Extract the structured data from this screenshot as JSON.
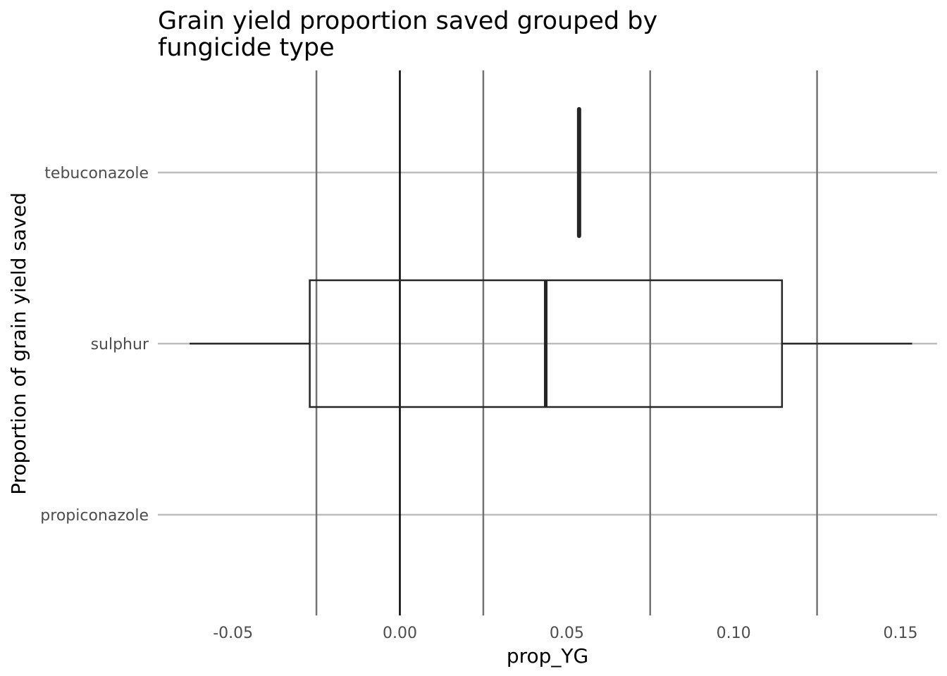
{
  "chart_data": {
    "type": "boxplot",
    "orientation": "horizontal",
    "title_lines": [
      "Grain yield proportion saved grouped by",
      "fungicide type"
    ],
    "xlabel": "prop_YG",
    "ylabel": "Proportion of grain yield saved",
    "xlim": [
      -0.075,
      0.165
    ],
    "x_ticks": [
      -0.05,
      0.0,
      0.05,
      0.1,
      0.15
    ],
    "x_tick_labels": [
      "-0.05",
      "0.00",
      "0.05",
      "0.10",
      "0.15"
    ],
    "x_minor_gridlines": [
      -0.025,
      0.025,
      0.075,
      0.125
    ],
    "reference_line": 0.0,
    "categories": [
      "tebuconazole",
      "sulphur",
      "propiconazole"
    ],
    "boxes": [
      {
        "category": "tebuconazole",
        "whisker_low": 0.0537,
        "q1": 0.0537,
        "median": 0.0537,
        "q3": 0.0537,
        "whisker_high": 0.0537
      },
      {
        "category": "sulphur",
        "whisker_low": -0.063,
        "q1": -0.027,
        "median": 0.0437,
        "q3": 0.1145,
        "whisker_high": 0.1535
      }
    ],
    "grid": true,
    "colors": {
      "box_stroke": "#262626",
      "gridline": "#737373",
      "ref_line": "#000000",
      "category_grid": "#bdbdbd"
    }
  }
}
